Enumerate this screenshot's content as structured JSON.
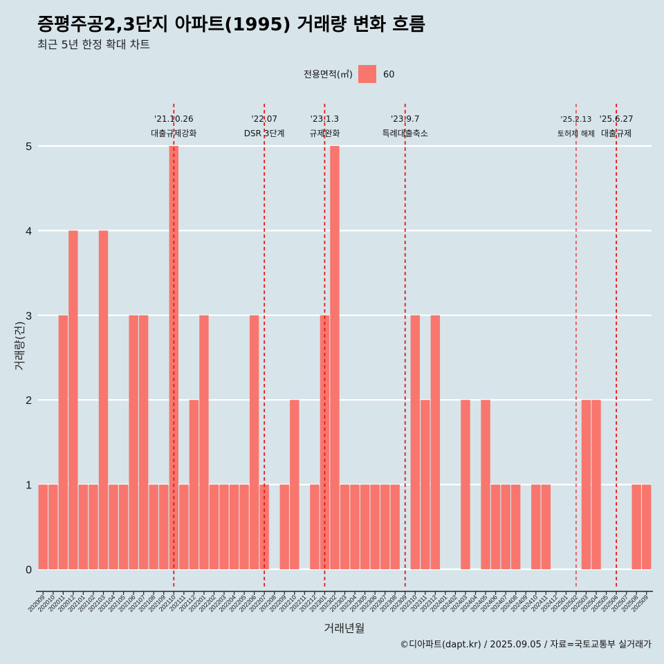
{
  "title": "증평주공2,3단지 아파트(1995) 거래량 변화 흐름",
  "subtitle": "최근 5년 한정 확대 차트",
  "caption": "©디아파트(dapt.kr) / 2025.09.05 / 자료=국토교통부 실거래가",
  "colors": {
    "background": "#d7e4ea",
    "bar": "#f8766d",
    "grid": "#ffffff",
    "event_line": "#e41a1c"
  },
  "chart_data": {
    "type": "bar",
    "xlabel": "거래년월",
    "ylabel": "거래량(건)",
    "ylim": [
      0,
      5
    ],
    "yticks": [
      0,
      1,
      2,
      3,
      4,
      5
    ],
    "grid": true,
    "legend": {
      "title": "전용면적(㎡)",
      "position": "top"
    },
    "categories": [
      "202009",
      "202010",
      "202011",
      "202012",
      "202101",
      "202102",
      "202103",
      "202104",
      "202105",
      "202106",
      "202107",
      "202108",
      "202109",
      "202110",
      "202111",
      "202112",
      "202201",
      "202202",
      "202203",
      "202204",
      "202205",
      "202206",
      "202207",
      "202208",
      "202209",
      "202210",
      "202211",
      "202212",
      "202301",
      "202302",
      "202303",
      "202304",
      "202305",
      "202306",
      "202307",
      "202308",
      "202309",
      "202310",
      "202311",
      "202312",
      "202401",
      "202402",
      "202403",
      "202404",
      "202405",
      "202406",
      "202407",
      "202408",
      "202409",
      "202410",
      "202411",
      "202412",
      "202501",
      "202502",
      "202503",
      "202504",
      "202505",
      "202506",
      "202507",
      "202508",
      "202509"
    ],
    "series": [
      {
        "name": "60",
        "color": "#f8766d",
        "values": [
          1,
          1,
          3,
          4,
          1,
          1,
          4,
          1,
          1,
          3,
          3,
          1,
          1,
          5,
          1,
          2,
          3,
          1,
          1,
          1,
          1,
          3,
          1,
          0,
          1,
          2,
          0,
          1,
          3,
          5,
          1,
          1,
          1,
          1,
          1,
          1,
          0,
          3,
          2,
          3,
          0,
          0,
          2,
          0,
          2,
          1,
          1,
          1,
          0,
          1,
          1,
          0,
          0,
          0,
          2,
          2,
          0,
          0,
          0,
          1,
          1
        ]
      }
    ],
    "events": [
      {
        "month": "202110",
        "date": "'21.10.26",
        "label": "대출규제강화",
        "small": false
      },
      {
        "month": "202207",
        "date": "'22.07",
        "label": "DSR 3단계",
        "small": false
      },
      {
        "month": "202301",
        "date": "'23.1.3",
        "label": "규제완화",
        "small": false
      },
      {
        "month": "202309",
        "date": "'23.9.7",
        "label": "특례대출축소",
        "small": false
      },
      {
        "month": "202502",
        "date": "'25.2.13",
        "label": "토허제 해제",
        "small": true
      },
      {
        "month": "202506",
        "date": "'25.6.27",
        "label": "대출규제",
        "small": false
      }
    ]
  }
}
